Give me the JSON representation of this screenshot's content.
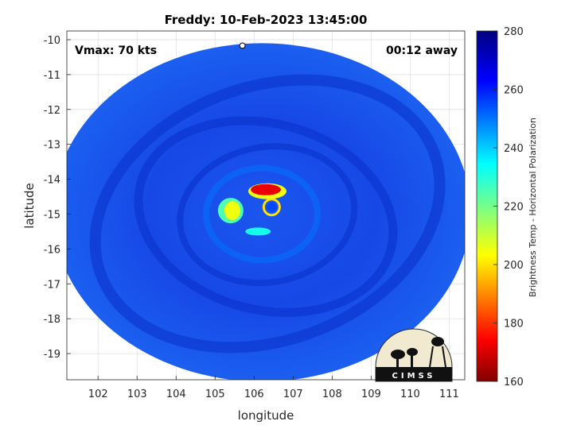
{
  "chart_data": {
    "type": "heatmap",
    "title": "Freddy: 10-Feb-2023 13:45:00",
    "xlabel": "longitude",
    "ylabel": "latitude",
    "xlim": [
      101.2,
      111.4
    ],
    "ylim": [
      -19.75,
      -9.75
    ],
    "x_ticks": [
      "102",
      "103",
      "104",
      "105",
      "106",
      "107",
      "108",
      "109",
      "110",
      "111"
    ],
    "y_ticks": [
      "-10",
      "-11",
      "-12",
      "-13",
      "-14",
      "-15",
      "-16",
      "-17",
      "-18",
      "-19"
    ],
    "annotations": {
      "vmax": "Vmax: 70 kts",
      "time_away": "00:12 away"
    },
    "colorbar": {
      "label": "Brightness Temp - Horizontal Polarization",
      "range": [
        160,
        280
      ],
      "ticks": [
        "280",
        "260",
        "240",
        "220",
        "200",
        "180",
        "160"
      ],
      "colormap": "jet"
    },
    "swath": {
      "center_lon": 106.2,
      "center_lat": -14.95,
      "radius_lon": 5.35,
      "radius_lat": 4.85,
      "background_temp": 262
    },
    "features": [
      {
        "name": "eyewall-warm-arc",
        "lon": 106.3,
        "lat": -14.3,
        "temp": 172
      },
      {
        "name": "inner-band-west",
        "lon": 105.4,
        "lat": -14.9,
        "temp": 205
      },
      {
        "name": "eye",
        "lon": 106.45,
        "lat": -14.8,
        "temp": 255
      },
      {
        "name": "spiral-band-south",
        "lon": 106.1,
        "lat": -15.5,
        "temp": 232
      },
      {
        "name": "outer-band-ring",
        "lon": 106.2,
        "lat": -15.0,
        "temp": 250
      }
    ],
    "logo": "CIMSS"
  },
  "colors": {
    "swath_dark": "#0a2fd8",
    "swath_light": "#1f6cf5",
    "warm": "#a00000",
    "grid": "#dcdcdc"
  }
}
